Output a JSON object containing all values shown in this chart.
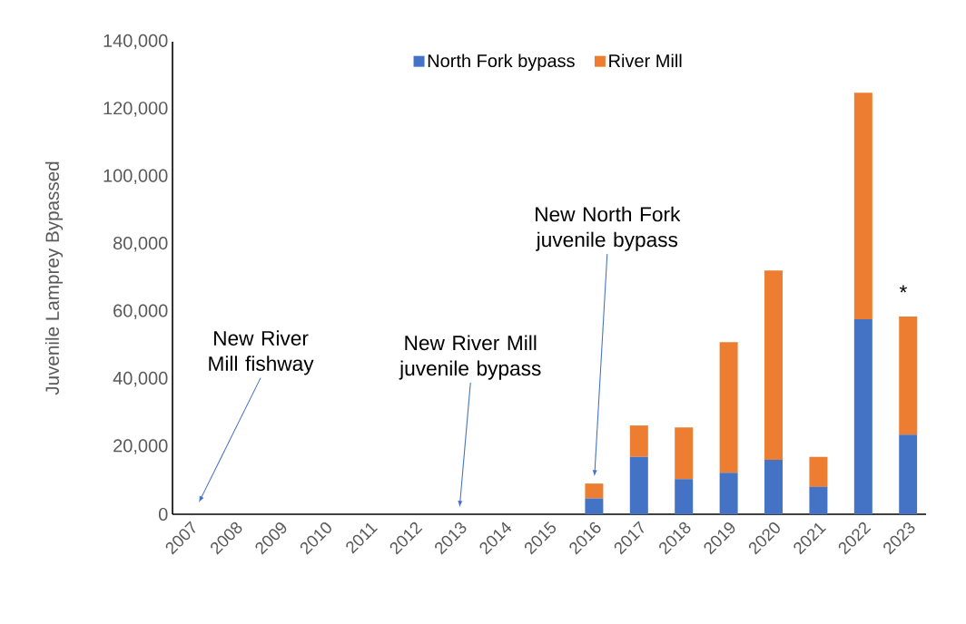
{
  "chart_data": {
    "type": "bar",
    "stacked": true,
    "ylabel": "Juvenile Lamprey Bypassed",
    "categories": [
      "2007",
      "2008",
      "2009",
      "2010",
      "2011",
      "2012",
      "2013",
      "2014",
      "2015",
      "2016",
      "2017",
      "2018",
      "2019",
      "2020",
      "2021",
      "2022",
      "2023"
    ],
    "series": [
      {
        "name": "North Fork bypass",
        "color": "#4472c4",
        "values": [
          null,
          null,
          null,
          null,
          null,
          null,
          null,
          null,
          null,
          4700,
          17000,
          10400,
          12300,
          16100,
          8100,
          57800,
          23600
        ]
      },
      {
        "name": "River Mill",
        "color": "#ed7d31",
        "values": [
          null,
          null,
          null,
          null,
          null,
          null,
          null,
          null,
          null,
          4400,
          9300,
          15300,
          38700,
          56100,
          8900,
          67100,
          35000
        ]
      }
    ],
    "ylim": [
      0,
      140000
    ],
    "yticks": [
      {
        "value": 0,
        "label": "0"
      },
      {
        "value": 20000,
        "label": "20,000"
      },
      {
        "value": 40000,
        "label": "40,000"
      },
      {
        "value": 60000,
        "label": "60,000"
      },
      {
        "value": 80000,
        "label": "80,000"
      },
      {
        "value": 100000,
        "label": "100,000"
      },
      {
        "value": 120000,
        "label": "120,000"
      },
      {
        "value": 140000,
        "label": "140,000"
      }
    ],
    "legend": "top",
    "grid": false,
    "annotations": [
      "New River Mill fishway",
      "New River Mill juvenile bypass",
      "New North Fork juvenile bypass",
      {
        "text": "*",
        "x": "2023",
        "y": 58600
      }
    ]
  }
}
